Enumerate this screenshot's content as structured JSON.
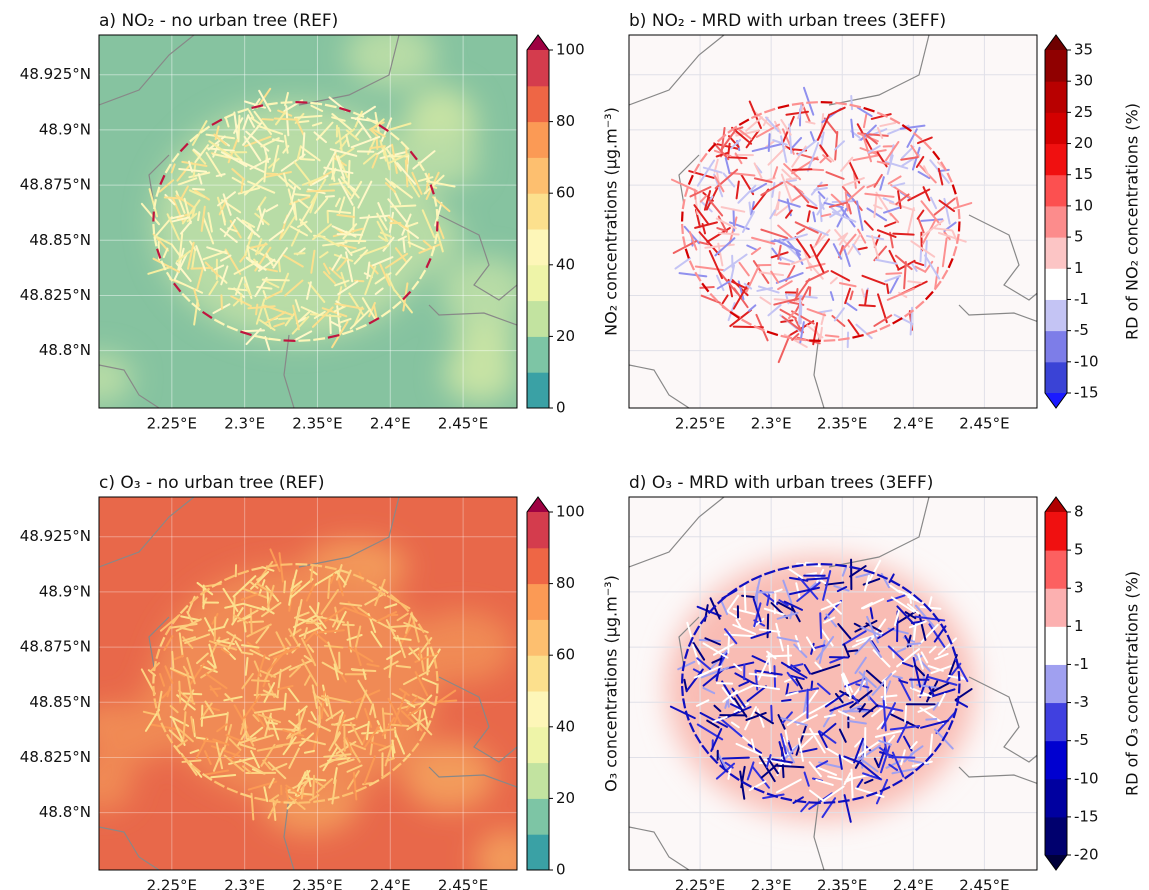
{
  "panels": [
    {
      "title": "a) NO₂ - no urban tree (REF)",
      "lonlim": [
        2.2,
        2.487
      ],
      "latlim": [
        48.774,
        48.943
      ],
      "xticks": [
        {
          "value": 2.25,
          "label": "2.25°E"
        },
        {
          "value": 2.3,
          "label": "2.3°E"
        },
        {
          "value": 2.35,
          "label": "2.35°E"
        },
        {
          "value": 2.4,
          "label": "2.4°E"
        },
        {
          "value": 2.45,
          "label": "2.45°E"
        }
      ],
      "yticks": [
        {
          "value": 48.8,
          "label": "48.8°N"
        },
        {
          "value": 48.825,
          "label": "48.825°N"
        },
        {
          "value": 48.85,
          "label": "48.85°N"
        },
        {
          "value": 48.875,
          "label": "48.875°N"
        },
        {
          "value": 48.9,
          "label": "48.9°N"
        },
        {
          "value": 48.925,
          "label": "48.925°N"
        }
      ],
      "colorbar": {
        "label": "NO₂ concentrations (µg.m⁻³)",
        "levels": [
          0,
          10,
          20,
          30,
          40,
          50,
          60,
          70,
          80,
          90,
          100
        ],
        "ticks": [
          0,
          20,
          40,
          60,
          80,
          100
        ],
        "colors": [
          "#3aa1a5",
          "#7dc5a5",
          "#c2e3a0",
          "#eef4a8",
          "#fdf6b8",
          "#fce08d",
          "#fdbf6f",
          "#fb9a55",
          "#ee6645",
          "#d43c4d"
        ],
        "over_color": "#9e0142"
      }
    },
    {
      "title": "b) NO₂ - MRD with urban trees (3EFF)",
      "lonlim": [
        2.2,
        2.487
      ],
      "latlim": [
        48.774,
        48.943
      ],
      "xticks": [
        {
          "value": 2.25,
          "label": "2.25°E"
        },
        {
          "value": 2.3,
          "label": "2.3°E"
        },
        {
          "value": 2.35,
          "label": "2.35°E"
        },
        {
          "value": 2.4,
          "label": "2.4°E"
        },
        {
          "value": 2.45,
          "label": "2.45°E"
        }
      ],
      "colorbar": {
        "label": "RD of NO₂ concentrations (%)",
        "levels": [
          -15,
          -10,
          -5,
          -1,
          1,
          5,
          10,
          15,
          20,
          25,
          30,
          35
        ],
        "ticks": [
          -15,
          -10,
          -5,
          -1,
          1,
          5,
          10,
          15,
          20,
          25,
          30,
          35
        ],
        "colors": [
          "#3a43d6",
          "#7d7de8",
          "#c4c4f4",
          "#ffffff",
          "#fcc5c5",
          "#fc8c8c",
          "#fc5050",
          "#f01010",
          "#d40000",
          "#b80000",
          "#900000"
        ],
        "under_color": "#1a1aff",
        "over_color": "#6e0000"
      }
    },
    {
      "title": "c) O₃ - no urban tree (REF)",
      "lonlim": [
        2.2,
        2.487
      ],
      "latlim": [
        48.774,
        48.943
      ],
      "xticks": [
        {
          "value": 2.25,
          "label": "2.25°E"
        },
        {
          "value": 2.3,
          "label": "2.3°E"
        },
        {
          "value": 2.35,
          "label": "2.35°E"
        },
        {
          "value": 2.4,
          "label": "2.4°E"
        },
        {
          "value": 2.45,
          "label": "2.45°E"
        }
      ],
      "yticks": [
        {
          "value": 48.8,
          "label": "48.8°N"
        },
        {
          "value": 48.825,
          "label": "48.825°N"
        },
        {
          "value": 48.85,
          "label": "48.85°N"
        },
        {
          "value": 48.875,
          "label": "48.875°N"
        },
        {
          "value": 48.9,
          "label": "48.9°N"
        },
        {
          "value": 48.925,
          "label": "48.925°N"
        }
      ],
      "colorbar": {
        "label": "O₃ concentrations (µg.m⁻³)",
        "levels": [
          0,
          10,
          20,
          30,
          40,
          50,
          60,
          70,
          80,
          90,
          100
        ],
        "ticks": [
          0,
          20,
          40,
          60,
          80,
          100
        ],
        "colors": [
          "#3aa1a5",
          "#7dc5a5",
          "#c2e3a0",
          "#eef4a8",
          "#fdf6b8",
          "#fce08d",
          "#fdbf6f",
          "#fb9a55",
          "#ee6645",
          "#d43c4d"
        ],
        "over_color": "#9e0142"
      }
    },
    {
      "title": "d) O₃ - MRD with urban trees (3EFF)",
      "lonlim": [
        2.2,
        2.487
      ],
      "latlim": [
        48.774,
        48.943
      ],
      "xticks": [
        {
          "value": 2.25,
          "label": "2.25°E"
        },
        {
          "value": 2.3,
          "label": "2.3°E"
        },
        {
          "value": 2.35,
          "label": "2.35°E"
        },
        {
          "value": 2.4,
          "label": "2.4°E"
        },
        {
          "value": 2.45,
          "label": "2.45°E"
        }
      ],
      "colorbar": {
        "label": "RD of O₃ concentrations (%)",
        "levels": [
          -20,
          -15,
          -10,
          -5,
          -3,
          -1,
          1,
          3,
          5,
          8
        ],
        "ticks": [
          -20,
          -15,
          -10,
          -5,
          -3,
          -1,
          1,
          3,
          5,
          8
        ],
        "colors": [
          "#00006e",
          "#0000a0",
          "#0000d0",
          "#4040e0",
          "#a0a0f0",
          "#ffffff",
          "#fcb0b0",
          "#fc6060",
          "#f01010"
        ],
        "under_color": "#00003a",
        "over_color": "#b00000"
      }
    }
  ]
}
